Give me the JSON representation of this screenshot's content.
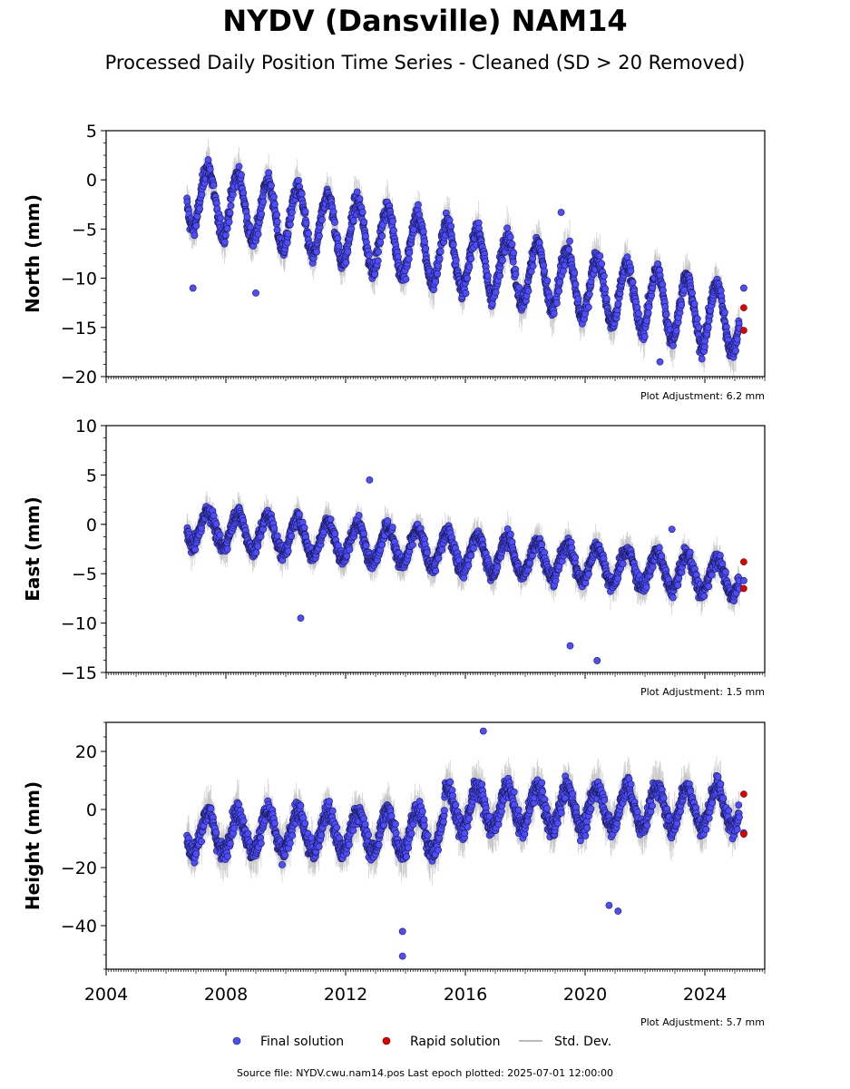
{
  "title": "NYDV (Dansville) NAM14",
  "subtitle": "Processed Daily Position Time Series - Cleaned (SD > 20 Removed)",
  "source_note": "Source file: NYDV.cwu.nam14.pos  Last epoch plotted: 2025-07-01 12:00:00",
  "colors": {
    "final": "#4d4dff",
    "rapid": "#e00000",
    "std": "#bbbbbb"
  },
  "chart_data": [
    {
      "type": "scatter",
      "ylabel": "North (mm)",
      "ylim": [
        -20,
        5
      ],
      "yticks": [
        5,
        0,
        -5,
        -10,
        -15,
        -20
      ],
      "xlim": [
        2004,
        2026
      ],
      "xticks": [
        2004,
        2008,
        2012,
        2016,
        2020,
        2024
      ],
      "show_xtick_labels": false,
      "adjustment": "Plot Adjustment: 6.2 mm",
      "trend": {
        "x": [
          2006.7,
          2025.3
        ],
        "y": [
          -1.5,
          -14.5
        ]
      },
      "season_amp": 3.2,
      "noise": 1.2,
      "outliers": [
        [
          2006.9,
          -11
        ],
        [
          2009.0,
          -11.5
        ],
        [
          2019.2,
          -3.3
        ],
        [
          2022.5,
          -18.5
        ],
        [
          2023.9,
          -18.2
        ],
        [
          2025.3,
          -11
        ]
      ],
      "rapid": [
        [
          2025.3,
          -13
        ],
        [
          2025.3,
          -15.3
        ]
      ]
    },
    {
      "type": "scatter",
      "ylabel": "East (mm)",
      "ylim": [
        -15,
        10
      ],
      "yticks": [
        10,
        5,
        0,
        -5,
        -10,
        -15
      ],
      "xlim": [
        2004,
        2026
      ],
      "xticks": [
        2004,
        2008,
        2012,
        2016,
        2020,
        2024
      ],
      "show_xtick_labels": false,
      "adjustment": "Plot Adjustment: 1.5 mm",
      "trend": {
        "x": [
          2006.7,
          2025.3
        ],
        "y": [
          -0.2,
          -5.5
        ]
      },
      "season_amp": 1.8,
      "noise": 1.0,
      "outliers": [
        [
          2010.5,
          -9.5
        ],
        [
          2012.8,
          4.5
        ],
        [
          2019.5,
          -12.3
        ],
        [
          2020.4,
          -13.8
        ],
        [
          2022.9,
          -0.5
        ],
        [
          2025.3,
          -5.7
        ]
      ],
      "rapid": [
        [
          2025.3,
          -3.8
        ],
        [
          2025.3,
          -6.5
        ]
      ]
    },
    {
      "type": "scatter",
      "ylabel": "Height (mm)",
      "ylim": [
        -55,
        30
      ],
      "yticks": [
        20,
        0,
        -20,
        -40
      ],
      "xlim": [
        2004,
        2026
      ],
      "xticks": [
        2004,
        2008,
        2012,
        2016,
        2020,
        2024
      ],
      "show_xtick_labels": true,
      "adjustment": "Plot Adjustment: 5.7 mm",
      "trend": {
        "x": [
          2006.7,
          2025.3
        ],
        "y": [
          -8,
          -4
        ]
      },
      "step": {
        "x": 2015.3,
        "before": -8,
        "after": 0
      },
      "season_amp": 7,
      "noise": 4.5,
      "outliers": [
        [
          2013.9,
          -50.5
        ],
        [
          2013.9,
          -42
        ],
        [
          2016.6,
          27
        ],
        [
          2020.8,
          -33
        ],
        [
          2021.1,
          -35
        ],
        [
          2025.3,
          -8
        ]
      ],
      "rapid": [
        [
          2025.3,
          5.3
        ],
        [
          2025.3,
          -8.5
        ]
      ]
    }
  ],
  "legend": {
    "items": [
      {
        "label": "Final solution",
        "marker": "final"
      },
      {
        "label": "Rapid solution",
        "marker": "rapid"
      },
      {
        "label": "Std. Dev.",
        "marker": "std"
      }
    ]
  }
}
